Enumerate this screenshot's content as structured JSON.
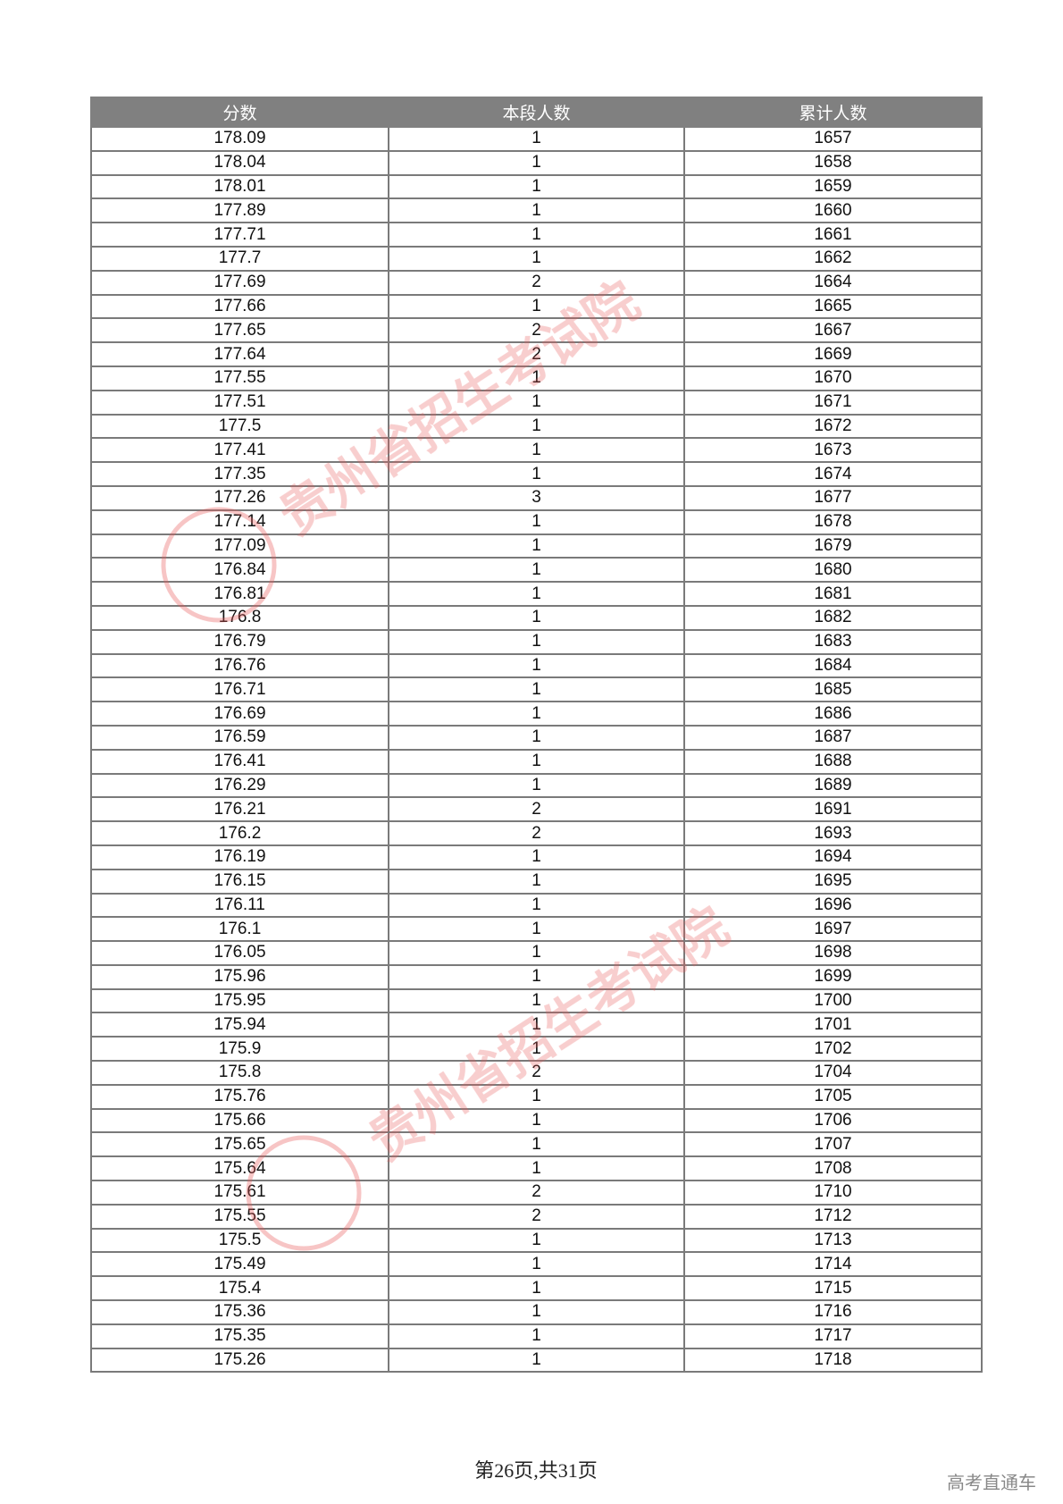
{
  "table": {
    "headers": [
      "分数",
      "本段人数",
      "累计人数"
    ],
    "rows": [
      [
        "178.09",
        "1",
        "1657"
      ],
      [
        "178.04",
        "1",
        "1658"
      ],
      [
        "178.01",
        "1",
        "1659"
      ],
      [
        "177.89",
        "1",
        "1660"
      ],
      [
        "177.71",
        "1",
        "1661"
      ],
      [
        "177.7",
        "1",
        "1662"
      ],
      [
        "177.69",
        "2",
        "1664"
      ],
      [
        "177.66",
        "1",
        "1665"
      ],
      [
        "177.65",
        "2",
        "1667"
      ],
      [
        "177.64",
        "2",
        "1669"
      ],
      [
        "177.55",
        "1",
        "1670"
      ],
      [
        "177.51",
        "1",
        "1671"
      ],
      [
        "177.5",
        "1",
        "1672"
      ],
      [
        "177.41",
        "1",
        "1673"
      ],
      [
        "177.35",
        "1",
        "1674"
      ],
      [
        "177.26",
        "3",
        "1677"
      ],
      [
        "177.14",
        "1",
        "1678"
      ],
      [
        "177.09",
        "1",
        "1679"
      ],
      [
        "176.84",
        "1",
        "1680"
      ],
      [
        "176.81",
        "1",
        "1681"
      ],
      [
        "176.8",
        "1",
        "1682"
      ],
      [
        "176.79",
        "1",
        "1683"
      ],
      [
        "176.76",
        "1",
        "1684"
      ],
      [
        "176.71",
        "1",
        "1685"
      ],
      [
        "176.69",
        "1",
        "1686"
      ],
      [
        "176.59",
        "1",
        "1687"
      ],
      [
        "176.41",
        "1",
        "1688"
      ],
      [
        "176.29",
        "1",
        "1689"
      ],
      [
        "176.21",
        "2",
        "1691"
      ],
      [
        "176.2",
        "2",
        "1693"
      ],
      [
        "176.19",
        "1",
        "1694"
      ],
      [
        "176.15",
        "1",
        "1695"
      ],
      [
        "176.11",
        "1",
        "1696"
      ],
      [
        "176.1",
        "1",
        "1697"
      ],
      [
        "176.05",
        "1",
        "1698"
      ],
      [
        "175.96",
        "1",
        "1699"
      ],
      [
        "175.95",
        "1",
        "1700"
      ],
      [
        "175.94",
        "1",
        "1701"
      ],
      [
        "175.9",
        "1",
        "1702"
      ],
      [
        "175.8",
        "2",
        "1704"
      ],
      [
        "175.76",
        "1",
        "1705"
      ],
      [
        "175.66",
        "1",
        "1706"
      ],
      [
        "175.65",
        "1",
        "1707"
      ],
      [
        "175.64",
        "1",
        "1708"
      ],
      [
        "175.61",
        "2",
        "1710"
      ],
      [
        "175.55",
        "2",
        "1712"
      ],
      [
        "175.5",
        "1",
        "1713"
      ],
      [
        "175.49",
        "1",
        "1714"
      ],
      [
        "175.4",
        "1",
        "1715"
      ],
      [
        "175.36",
        "1",
        "1716"
      ],
      [
        "175.35",
        "1",
        "1717"
      ],
      [
        "175.26",
        "1",
        "1718"
      ]
    ]
  },
  "footer": {
    "page_label": "第26页,共31页"
  },
  "brand": "高考直通车",
  "watermark": {
    "text": "贵州省招生考试院",
    "color": "#f08080"
  },
  "colors": {
    "header_bg": "#808080",
    "header_text": "#ffffff",
    "border": "#7a7a7a"
  }
}
